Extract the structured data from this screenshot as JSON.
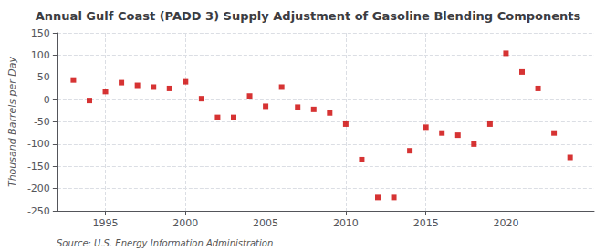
{
  "chart_data": {
    "type": "scatter",
    "title": "Annual Gulf Coast (PADD 3) Supply Adjustment of Gasoline Blending Components",
    "ylabel": "Thousand Barrels per Day",
    "source": "Source: U.S. Energy Information Administration",
    "x": [
      1993,
      1994,
      1995,
      1996,
      1997,
      1998,
      1999,
      2000,
      2001,
      2002,
      2003,
      2004,
      2005,
      2006,
      2007,
      2008,
      2009,
      2010,
      2011,
      2012,
      2013,
      2014,
      2015,
      2016,
      2017,
      2018,
      2019,
      2020,
      2021,
      2022,
      2023,
      2024
    ],
    "values": [
      44,
      -2,
      18,
      38,
      32,
      28,
      25,
      40,
      2,
      -40,
      -40,
      8,
      -15,
      28,
      -17,
      -22,
      -30,
      -55,
      -135,
      -220,
      -220,
      -115,
      -62,
      -75,
      -80,
      -100,
      -55,
      104,
      62,
      25,
      -75,
      -130
    ],
    "color": "#cc0000",
    "marker": "square",
    "xlim": [
      1992.0,
      2025.5
    ],
    "xticks": [
      1995,
      2000,
      2005,
      2010,
      2015,
      2020
    ],
    "ylim": [
      -250,
      150
    ],
    "yticks": [
      -250,
      -200,
      -150,
      -100,
      -50,
      0,
      50,
      100,
      150
    ],
    "grid": true
  }
}
